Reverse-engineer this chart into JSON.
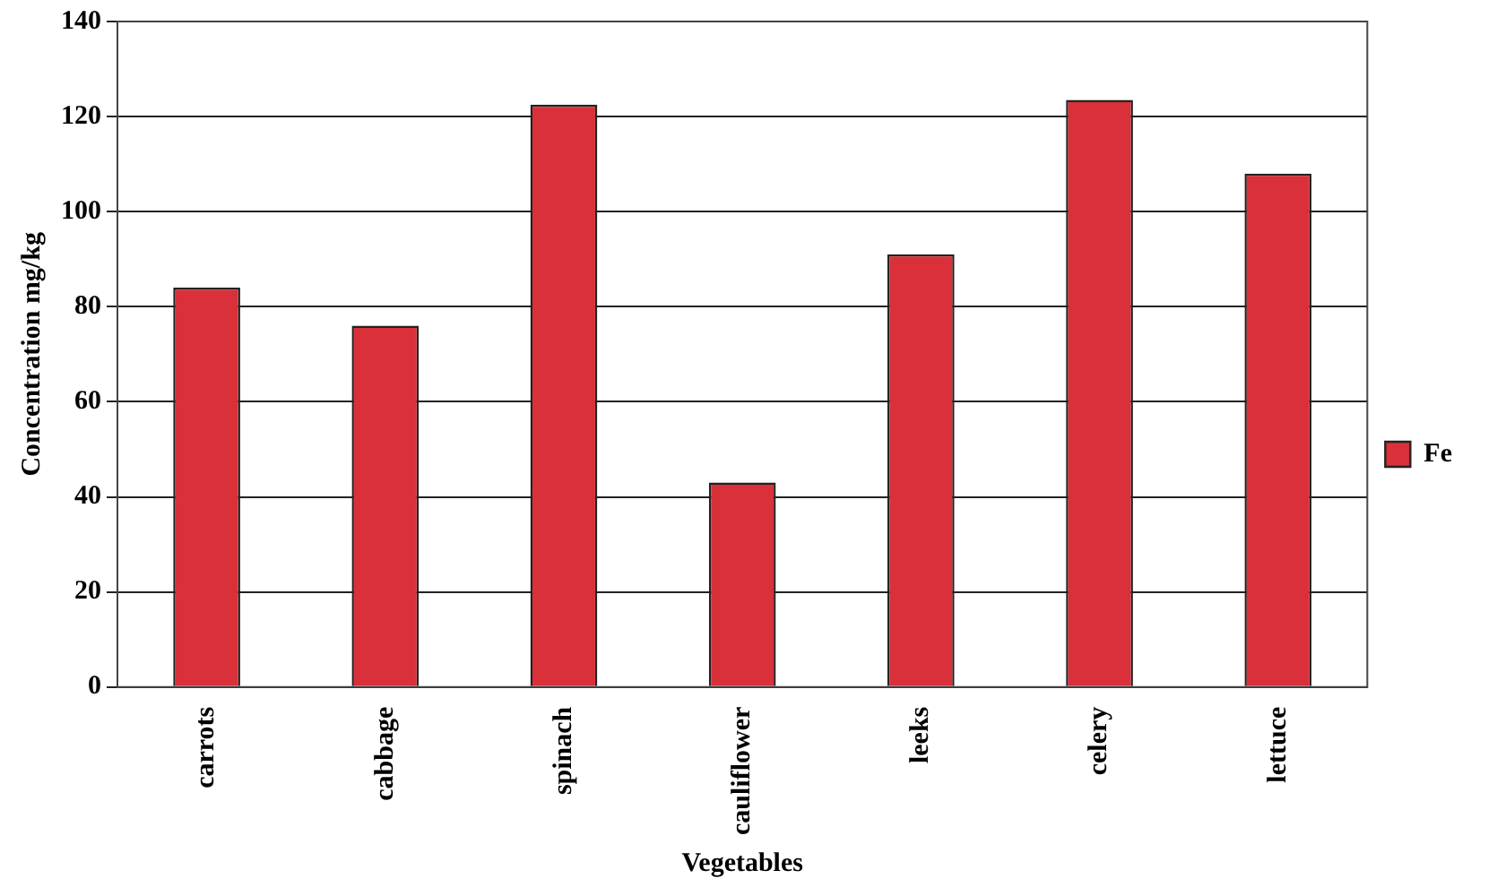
{
  "chart_data": {
    "type": "bar",
    "xlabel": "Vegetables",
    "ylabel": "Concentration mg/kg",
    "categories": [
      "carrots",
      "cabbage",
      "spinach",
      "cauliflower",
      "leeks",
      "celery",
      "lettuce"
    ],
    "series": [
      {
        "name": "Fe",
        "color": "#d9303a",
        "values": [
          84,
          76,
          122.5,
          43,
          91,
          123.5,
          108
        ]
      }
    ],
    "ylim": [
      0,
      140
    ],
    "yticks": [
      0,
      20,
      40,
      60,
      80,
      100,
      120,
      140
    ],
    "grid": "y",
    "legend": "right"
  }
}
